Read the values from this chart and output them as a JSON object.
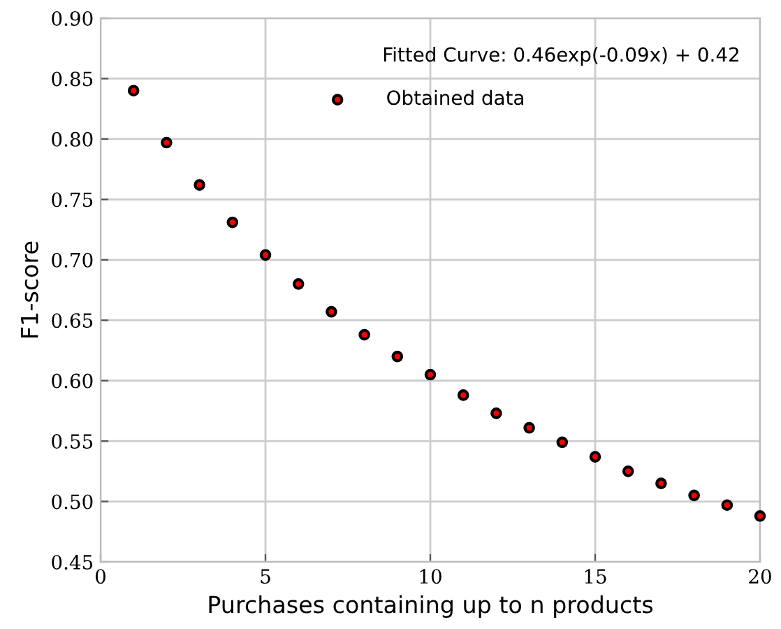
{
  "chart_data": {
    "type": "scatter",
    "xlabel": "Purchases containing up to n products",
    "ylabel": "F1-score",
    "annotations": [
      "Fitted Curve: 0.46exp(-0.09x) + 0.42"
    ],
    "x": [
      1,
      2,
      3,
      4,
      5,
      6,
      7,
      8,
      9,
      10,
      11,
      12,
      13,
      14,
      15,
      16,
      17,
      18,
      19,
      20
    ],
    "series": [
      {
        "name": "Obtained data",
        "color": "#ff0000",
        "values": [
          0.84,
          0.797,
          0.762,
          0.731,
          0.704,
          0.68,
          0.657,
          0.638,
          0.62,
          0.605,
          0.588,
          0.573,
          0.561,
          0.549,
          0.537,
          0.525,
          0.515,
          0.505,
          0.497,
          0.488
        ]
      }
    ],
    "xlim": [
      0,
      20
    ],
    "ylim": [
      0.45,
      0.9
    ],
    "xticks": [
      0,
      5,
      10,
      15,
      20
    ],
    "yticks": [
      0.45,
      {
        "value": 0.5,
        "label": "0.50"
      },
      0.55,
      {
        "value": 0.6,
        "label": "0.60"
      },
      0.65,
      {
        "value": 0.7,
        "label": "0.70"
      },
      0.75,
      {
        "value": 0.8,
        "label": "0.80"
      },
      0.85,
      {
        "value": 0.9,
        "label": "0.90"
      }
    ],
    "grid": true,
    "legend": "top right",
    "marker": "circle"
  }
}
